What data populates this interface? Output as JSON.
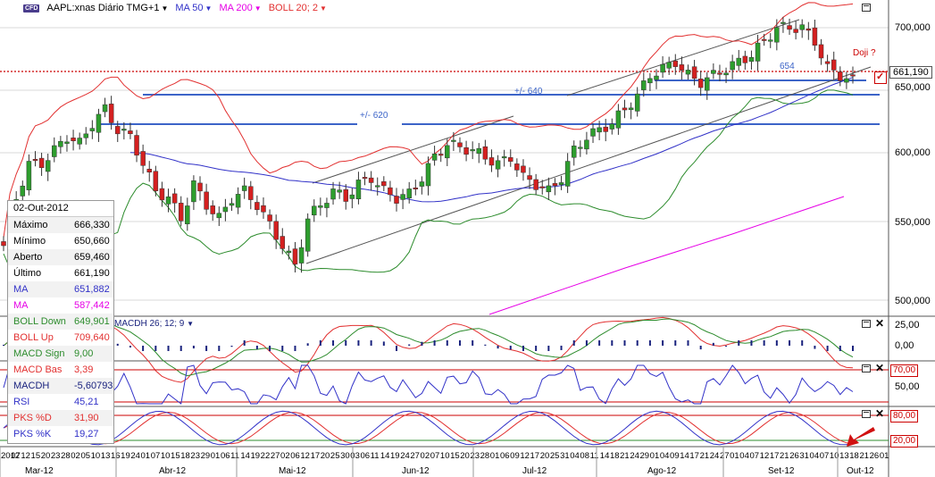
{
  "header": {
    "logo": "CFD",
    "symbol": "AAPL:xnas Diário TMG+1",
    "ma50": "MA 50",
    "ma200": "MA 200",
    "boll": "BOLL 20; 2"
  },
  "colors": {
    "ma50": "#3232c8",
    "ma200": "#e600e6",
    "boll_up": "#e23030",
    "boll_down": "#2d8c2d",
    "bull": "#2e9e2e",
    "bear": "#d42020",
    "level_line": "#3c64c8",
    "accent_red": "#cc0000"
  },
  "price_axis": [
    "700,000",
    "650,000",
    "600,000",
    "550,000",
    "500,000"
  ],
  "current_price": "661,190",
  "annotations": {
    "doji": "Doji ?",
    "level_654": "654",
    "level_640": "+/- 640",
    "level_620": "+/- 620"
  },
  "macd_panel": {
    "label": "MACDH 26; 12; 9",
    "axis": [
      "25,00",
      "0,00"
    ]
  },
  "rsi_panel": {
    "axis": [
      "70,00",
      "50,00"
    ]
  },
  "stoch_panel": {
    "axis": [
      "80,00",
      "20,00"
    ]
  },
  "info_box": {
    "date": "02-Out-2012",
    "rows": [
      {
        "label": "Máximo",
        "value": "666,330",
        "color": "#000000"
      },
      {
        "label": "Mínimo",
        "value": "650,660",
        "color": "#000000"
      },
      {
        "label": "Aberto",
        "value": "659,460",
        "color": "#000000"
      },
      {
        "label": "Último",
        "value": "661,190",
        "color": "#000000"
      },
      {
        "label": "MA",
        "value": "651,882",
        "color": "#3232c8"
      },
      {
        "label": "MA",
        "value": "587,442",
        "color": "#e600e6"
      },
      {
        "label": "BOLL Down",
        "value": "649,901",
        "color": "#2d8c2d"
      },
      {
        "label": "BOLL Up",
        "value": "709,640",
        "color": "#e23030"
      },
      {
        "label": "MACD Sign",
        "value": "9,00",
        "color": "#2d8c2d"
      },
      {
        "label": "MACD Bas",
        "value": "3,39",
        "color": "#e23030"
      },
      {
        "label": "MACDH",
        "value": "-5,60793",
        "color": "#1a237e"
      },
      {
        "label": "RSI",
        "value": "45,21",
        "color": "#3232c8"
      },
      {
        "label": "PKS %D",
        "value": "31,90",
        "color": "#e23030"
      },
      {
        "label": "PKS %K",
        "value": "19,27",
        "color": "#3232c8"
      }
    ]
  },
  "x_axis": {
    "days": [
      "2012",
      "07",
      "12",
      "15",
      "20",
      "23",
      "28",
      "02",
      "05",
      "10",
      "13",
      "16",
      "19",
      "24",
      "01",
      "07",
      "10",
      "15",
      "18",
      "23",
      "29",
      "01",
      "06",
      "11",
      "14",
      "19",
      "22",
      "27",
      "02",
      "06",
      "12",
      "17",
      "20",
      "25",
      "30",
      "03",
      "06",
      "11",
      "14",
      "19",
      "24",
      "27",
      "02",
      "07",
      "10",
      "15",
      "20",
      "23",
      "28",
      "01",
      "06",
      "09",
      "12",
      "17",
      "20",
      "25",
      "31",
      "04",
      "08",
      "11",
      "14",
      "18",
      "21",
      "24",
      "29",
      "01",
      "04",
      "09",
      "14",
      "17",
      "21",
      "24",
      "27",
      "01",
      "04",
      "07",
      "12",
      "17",
      "21",
      "26",
      "31",
      "04",
      "07",
      "10",
      "13",
      "18",
      "21",
      "26",
      "01"
    ],
    "months": [
      "Mar-12",
      "Abr-12",
      "Mai-12",
      "Jun-12",
      "Jul-12",
      "Ago-12",
      "Set-12",
      "Out-12"
    ]
  },
  "chart_data": {
    "type": "candlestick",
    "x": [
      "2012-03-20",
      "2012-10-02"
    ],
    "ylim": [
      480,
      720
    ],
    "close_series_approx": [
      540,
      575,
      600,
      600,
      610,
      620,
      615,
      630,
      640,
      625,
      620,
      600,
      580,
      575,
      560,
      585,
      570,
      560,
      575,
      580,
      570,
      555,
      540,
      525,
      560,
      570,
      580,
      575,
      585,
      590,
      580,
      575,
      578,
      590,
      605,
      615,
      612,
      610,
      605,
      600,
      605,
      590,
      585,
      580,
      590,
      610,
      620,
      625,
      630,
      640,
      650,
      665,
      670,
      675,
      665,
      660,
      665,
      670,
      675,
      680,
      690,
      700,
      700,
      700,
      690,
      670,
      665,
      661
    ]
  }
}
